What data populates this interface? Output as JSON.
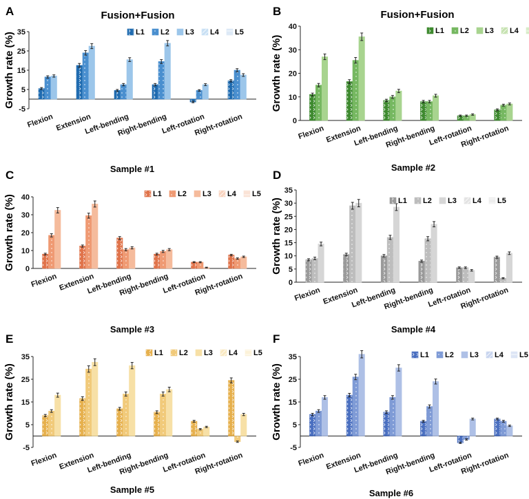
{
  "figure": {
    "legend_labels": [
      "L1",
      "L2",
      "L3",
      "L4",
      "L5"
    ]
  },
  "chart_data": [
    {
      "type": "bar",
      "panel": "A",
      "title": "Fusion+Fusion",
      "caption": "Sample #1",
      "ylabel": "Growth rate (%)",
      "ylim": [
        -5,
        35
      ],
      "yticks": [
        -5,
        5,
        15,
        25,
        35
      ],
      "categories": [
        "Flexion",
        "Extension",
        "Left-bending",
        "Right-bending",
        "Left-rotation",
        "Right-rotation"
      ],
      "colors": [
        "#1f6bb0",
        "#4a8fcf",
        "#9cc6ea",
        "#c9e0f4",
        "#dde9f6"
      ],
      "series": [
        {
          "name": "L1",
          "values": [
            5.5,
            17.5,
            4.5,
            7.5,
            -1.5,
            9.5
          ],
          "errors": [
            0.5,
            1,
            0.5,
            0.6,
            0.4,
            0.6
          ]
        },
        {
          "name": "L2",
          "values": [
            11.5,
            24,
            7.5,
            19.5,
            4.5,
            15
          ],
          "errors": [
            0.6,
            1.2,
            0.6,
            1,
            0.4,
            0.8
          ]
        },
        {
          "name": "L3",
          "values": [
            12,
            27.5,
            20.5,
            29,
            7.5,
            12.5
          ],
          "errors": [
            0.6,
            1.3,
            1,
            1.4,
            0.5,
            0.7
          ]
        }
      ]
    },
    {
      "type": "bar",
      "panel": "B",
      "title": "Fusion+Fusion",
      "caption": "Sample #2",
      "ylabel": "Growth rate (%)",
      "ylim": [
        0,
        40
      ],
      "yticks": [
        0,
        10,
        20,
        30,
        40
      ],
      "categories": [
        "Flexion",
        "Extension",
        "Left-bending",
        "Right-bending",
        "Left-rotation",
        "Right-rotation"
      ],
      "colors": [
        "#3e8a2f",
        "#76b861",
        "#a8d48f",
        "#c6e2b1",
        "#d8ecc8"
      ],
      "series": [
        {
          "name": "L1",
          "values": [
            11,
            16.5,
            8.5,
            8,
            2,
            4.5
          ],
          "errors": [
            0.6,
            0.8,
            0.5,
            0.5,
            0.3,
            0.4
          ]
        },
        {
          "name": "L2",
          "values": [
            15,
            25.5,
            10,
            8,
            2,
            6.5
          ],
          "errors": [
            0.7,
            1.2,
            0.6,
            0.5,
            0.3,
            0.4
          ]
        },
        {
          "name": "L3",
          "values": [
            27,
            35.5,
            12.5,
            10.5,
            2.5,
            7
          ],
          "errors": [
            1.2,
            1.6,
            0.7,
            0.6,
            0.3,
            0.4
          ]
        }
      ]
    },
    {
      "type": "bar",
      "panel": "C",
      "title": "",
      "caption": "Sample #3",
      "ylabel": "Growth rate (%)",
      "ylim": [
        0,
        40
      ],
      "yticks": [
        0,
        10,
        20,
        30,
        40
      ],
      "categories": [
        "Flexion",
        "Extension",
        "Left-bending",
        "Right-bending",
        "Left-rotation",
        "Right-rotation"
      ],
      "colors": [
        "#e0734a",
        "#ef9a73",
        "#f5bb9c",
        "#f8d3bf",
        "#fbe3d6"
      ],
      "series": [
        {
          "name": "L1",
          "values": [
            8,
            12.5,
            17,
            8,
            3.5,
            7.5
          ],
          "errors": [
            0.5,
            0.6,
            0.8,
            0.5,
            0.3,
            0.4
          ]
        },
        {
          "name": "L2",
          "values": [
            18.5,
            29.5,
            10.5,
            9.5,
            3.5,
            5.5
          ],
          "errors": [
            0.9,
            1.4,
            0.6,
            0.6,
            0.3,
            0.4
          ]
        },
        {
          "name": "L3",
          "values": [
            32.5,
            36,
            11.5,
            10.5,
            0.5,
            6.5
          ],
          "errors": [
            1.5,
            1.7,
            0.6,
            0.6,
            0.2,
            0.4
          ]
        }
      ]
    },
    {
      "type": "bar",
      "panel": "D",
      "title": "",
      "caption": "Sample #4",
      "ylabel": "Growth rate (%)",
      "ylim": [
        0,
        35
      ],
      "yticks": [
        0,
        5,
        10,
        15,
        20,
        25,
        30,
        35
      ],
      "categories": [
        "Flexion",
        "Extension",
        "Left-bending",
        "Right-bending",
        "Left-rotation",
        "Right-rotation"
      ],
      "colors": [
        "#9a9a9a",
        "#bdbdbd",
        "#d6d6d6",
        "#e3e3e3",
        "#ececec"
      ],
      "series": [
        {
          "name": "L1",
          "values": [
            8.5,
            10.5,
            10,
            8,
            5.5,
            9.5
          ],
          "errors": [
            0.4,
            0.5,
            0.5,
            0.4,
            0.3,
            0.4
          ]
        },
        {
          "name": "L2",
          "values": [
            9,
            29,
            17,
            16.5,
            5.5,
            1.5
          ],
          "errors": [
            0.5,
            1.3,
            0.8,
            0.8,
            0.3,
            0.2
          ]
        },
        {
          "name": "L3",
          "values": [
            14.5,
            30,
            28.5,
            22,
            4.5,
            11
          ],
          "errors": [
            0.7,
            1.4,
            1.3,
            1,
            0.3,
            0.5
          ]
        }
      ]
    },
    {
      "type": "bar",
      "panel": "E",
      "title": "",
      "caption": "Sample #5",
      "ylabel": "Growth rate (%)",
      "ylim": [
        -5,
        35
      ],
      "yticks": [
        -5,
        5,
        15,
        25,
        35
      ],
      "categories": [
        "Flexion",
        "Extension",
        "Left-bending",
        "Right-bending",
        "Left-rotation",
        "Right-rotation"
      ],
      "colors": [
        "#e6b04d",
        "#f1ca7a",
        "#f7e0a6",
        "#f9e9c2",
        "#fcf2d9"
      ],
      "series": [
        {
          "name": "L1",
          "values": [
            9,
            16.5,
            12,
            10.5,
            6.5,
            24.5
          ],
          "errors": [
            0.5,
            0.8,
            0.6,
            0.6,
            0.4,
            1.1
          ]
        },
        {
          "name": "L2",
          "values": [
            11,
            29.5,
            18.5,
            18.5,
            3,
            -2.5
          ],
          "errors": [
            0.6,
            1.4,
            0.9,
            0.9,
            0.3,
            0.3
          ]
        },
        {
          "name": "L3",
          "values": [
            18,
            32.5,
            31,
            20.5,
            4,
            9.5
          ],
          "errors": [
            0.9,
            1.5,
            1.4,
            1,
            0.3,
            0.5
          ]
        }
      ]
    },
    {
      "type": "bar",
      "panel": "F",
      "title": "",
      "caption": "Sample #6",
      "ylabel": "Growth rate (%)",
      "ylim": [
        -5,
        35
      ],
      "yticks": [
        -5,
        5,
        15,
        25,
        35
      ],
      "categories": [
        "Flexion",
        "Extension",
        "Left-bending",
        "Right-bending",
        "Left-rotation",
        "Right-rotation"
      ],
      "colors": [
        "#4a6fc0",
        "#7f9bd6",
        "#aec0e6",
        "#c9d5ef",
        "#dde5f5"
      ],
      "series": [
        {
          "name": "L1",
          "values": [
            9.5,
            18,
            10.5,
            6.5,
            -3,
            7.5
          ],
          "errors": [
            0.5,
            0.8,
            0.6,
            0.4,
            0.3,
            0.4
          ]
        },
        {
          "name": "L2",
          "values": [
            11,
            26,
            17,
            13,
            -1.5,
            6.5
          ],
          "errors": [
            0.6,
            1.2,
            0.8,
            0.7,
            0.3,
            0.4
          ]
        },
        {
          "name": "L3",
          "values": [
            17,
            36,
            30,
            24,
            7.5,
            4.5
          ],
          "errors": [
            0.8,
            1.6,
            1.4,
            1.1,
            0.4,
            0.3
          ]
        }
      ]
    }
  ]
}
